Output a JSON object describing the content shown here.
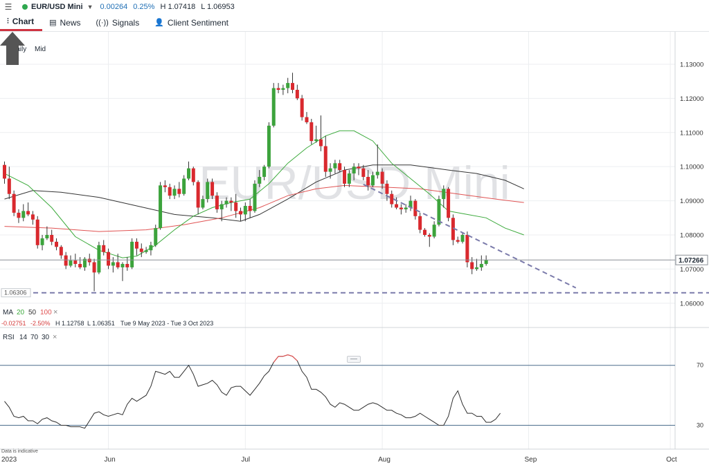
{
  "topbar": {
    "instrument": "EUR/USD Mini",
    "change": "0.00264",
    "change_pct": "0.25%",
    "high": "H 1.07418",
    "low": "L 1.06953",
    "menu_icon": "hamburger-icon",
    "status_color": "#2fa84f"
  },
  "tabs": [
    {
      "label": "Chart",
      "icon": "candles-icon",
      "active": true
    },
    {
      "label": "News",
      "icon": "newspaper-icon",
      "active": false
    },
    {
      "label": "Signals",
      "icon": "signal-icon",
      "active": false
    },
    {
      "label": "Client Sentiment",
      "icon": "person-icon",
      "active": false
    }
  ],
  "chart_data": {
    "type": "candlestick",
    "watermark": "EUR/USD Mini",
    "timeframe": "Daily",
    "price_type": "Mid",
    "y_ticks": [
      "1.13000",
      "1.12000",
      "1.11000",
      "1.10000",
      "1.09000",
      "1.08000",
      "1.07000",
      "1.06000"
    ],
    "ylim": [
      1.0545,
      1.1395
    ],
    "x_ticks": [
      {
        "label": "2023",
        "index": 0
      },
      {
        "label": "Jun",
        "index": 22
      },
      {
        "label": "Jul",
        "index": 51
      },
      {
        "label": "Aug",
        "index": 80
      },
      {
        "label": "Sep",
        "index": 111
      },
      {
        "label": "Oct",
        "index": 141
      }
    ],
    "current_price": "1.07266",
    "current_value": 1.07266,
    "support_label": "1.06306",
    "support_value": 1.06306,
    "trendline": {
      "from": [
        76,
        1.0948
      ],
      "to": [
        121,
        1.0645
      ]
    },
    "ma_legend": {
      "label": "MA",
      "p1": "20",
      "p2": "50",
      "p3": "100",
      "close": "×"
    },
    "ma_colors": {
      "20": "#3caa3c",
      "50": "#e05252",
      "100": "#333333"
    },
    "info_line": {
      "change": "-0.02751",
      "change_pct": "-2.50%",
      "high": "H 1.12758",
      "low": "L 1.06351",
      "range": "Tue 9 May 2023 - Tue 3 Oct 2023"
    },
    "candles": [
      [
        1.1005,
        1.1015,
        1.095,
        1.0965
      ],
      [
        1.0965,
        1.1,
        1.0905,
        1.092
      ],
      [
        1.092,
        1.093,
        1.0855,
        1.0865
      ],
      [
        1.0865,
        1.0875,
        1.0835,
        1.085
      ],
      [
        1.085,
        1.089,
        1.084,
        1.087
      ],
      [
        1.087,
        1.0895,
        1.0855,
        1.086
      ],
      [
        1.086,
        1.087,
        1.083,
        1.0845
      ],
      [
        1.0845,
        1.0855,
        1.076,
        1.077
      ],
      [
        1.077,
        1.08,
        1.0755,
        1.079
      ],
      [
        1.079,
        1.0825,
        1.0785,
        1.08
      ],
      [
        1.08,
        1.0815,
        1.077,
        1.078
      ],
      [
        1.078,
        1.079,
        1.0755,
        1.0765
      ],
      [
        1.0765,
        1.077,
        1.073,
        1.074
      ],
      [
        1.074,
        1.075,
        1.07,
        1.071
      ],
      [
        1.071,
        1.074,
        1.0705,
        1.0725
      ],
      [
        1.0725,
        1.0745,
        1.0705,
        1.0715
      ],
      [
        1.0715,
        1.0735,
        1.07,
        1.0705
      ],
      [
        1.0705,
        1.0735,
        1.0695,
        1.073
      ],
      [
        1.073,
        1.0745,
        1.071,
        1.072
      ],
      [
        1.072,
        1.073,
        1.0635,
        1.069
      ],
      [
        1.069,
        1.078,
        1.0685,
        1.077
      ],
      [
        1.077,
        1.0785,
        1.074,
        1.075
      ],
      [
        1.075,
        1.076,
        1.07,
        1.071
      ],
      [
        1.071,
        1.0735,
        1.069,
        1.072
      ],
      [
        1.072,
        1.0745,
        1.07,
        1.0705
      ],
      [
        1.0705,
        1.072,
        1.0665,
        1.0715
      ],
      [
        1.0715,
        1.0735,
        1.0695,
        1.0705
      ],
      [
        1.0705,
        1.079,
        1.07,
        1.078
      ],
      [
        1.078,
        1.079,
        1.074,
        1.076
      ],
      [
        1.076,
        1.0775,
        1.0735,
        1.075
      ],
      [
        1.075,
        1.0765,
        1.0745,
        1.0755
      ],
      [
        1.0755,
        1.078,
        1.074,
        1.077
      ],
      [
        1.077,
        1.083,
        1.0765,
        1.082
      ],
      [
        1.082,
        1.0955,
        1.0815,
        1.0945
      ],
      [
        1.0945,
        1.096,
        1.0925,
        1.094
      ],
      [
        1.094,
        1.095,
        1.0905,
        1.0915
      ],
      [
        1.0915,
        1.0945,
        1.0905,
        1.0935
      ],
      [
        1.0935,
        1.0955,
        1.091,
        1.092
      ],
      [
        1.092,
        1.0975,
        1.0915,
        1.0965
      ],
      [
        1.0965,
        1.1015,
        1.096,
        1.0995
      ],
      [
        1.0995,
        1.1,
        1.0945,
        1.0955
      ],
      [
        1.0955,
        1.096,
        1.086,
        1.088
      ],
      [
        1.088,
        1.0915,
        1.0875,
        1.0905
      ],
      [
        1.0905,
        1.0965,
        1.0895,
        1.0955
      ],
      [
        1.0955,
        1.0965,
        1.0905,
        1.0915
      ],
      [
        1.0915,
        1.0925,
        1.0865,
        1.0875
      ],
      [
        1.0875,
        1.09,
        1.084,
        1.089
      ],
      [
        1.089,
        1.091,
        1.088,
        1.09
      ],
      [
        1.09,
        1.091,
        1.087,
        1.0895
      ],
      [
        1.0895,
        1.092,
        1.085,
        1.087
      ],
      [
        1.087,
        1.088,
        1.084,
        1.086
      ],
      [
        1.086,
        1.0895,
        1.084,
        1.0885
      ],
      [
        1.0885,
        1.0905,
        1.085,
        1.087
      ],
      [
        1.087,
        1.096,
        1.0865,
        1.095
      ],
      [
        1.095,
        1.099,
        1.094,
        1.097
      ],
      [
        1.097,
        1.1005,
        1.096,
        1.1
      ],
      [
        1.1,
        1.113,
        1.0995,
        1.112
      ],
      [
        1.112,
        1.1245,
        1.1115,
        1.123
      ],
      [
        1.123,
        1.1245,
        1.1215,
        1.1225
      ],
      [
        1.1225,
        1.124,
        1.121,
        1.123
      ],
      [
        1.123,
        1.126,
        1.1215,
        1.1245
      ],
      [
        1.1245,
        1.1275,
        1.1215,
        1.1225
      ],
      [
        1.1225,
        1.124,
        1.1195,
        1.12
      ],
      [
        1.12,
        1.121,
        1.1135,
        1.1145
      ],
      [
        1.1145,
        1.116,
        1.1125,
        1.113
      ],
      [
        1.113,
        1.114,
        1.1065,
        1.1075
      ],
      [
        1.1075,
        1.112,
        1.107,
        1.108
      ],
      [
        1.108,
        1.115,
        1.1045,
        1.106
      ],
      [
        1.106,
        1.109,
        1.097,
        1.0985
      ],
      [
        1.0985,
        1.101,
        1.0965,
        1.0995
      ],
      [
        1.0995,
        1.102,
        1.098,
        1.101
      ],
      [
        1.101,
        1.102,
        1.0985,
        1.099
      ],
      [
        1.099,
        1.1,
        1.094,
        1.095
      ],
      [
        1.095,
        1.099,
        1.094,
        1.098
      ],
      [
        1.098,
        1.101,
        1.096,
        1.1
      ],
      [
        1.1,
        1.101,
        1.0975,
        1.0995
      ],
      [
        1.0995,
        1.1005,
        1.096,
        1.097
      ],
      [
        1.097,
        1.099,
        1.093,
        1.0945
      ],
      [
        1.0945,
        1.0985,
        1.094,
        1.0975
      ],
      [
        1.0975,
        1.1065,
        1.0965,
        1.0985
      ],
      [
        1.0985,
        1.0995,
        1.0935,
        1.095
      ],
      [
        1.095,
        1.096,
        1.09,
        1.092
      ],
      [
        1.092,
        1.093,
        1.088,
        1.089
      ],
      [
        1.089,
        1.091,
        1.0875,
        1.088
      ],
      [
        1.088,
        1.089,
        1.086,
        1.0875
      ],
      [
        1.0875,
        1.089,
        1.0865,
        1.088
      ],
      [
        1.088,
        1.0915,
        1.087,
        1.09
      ],
      [
        1.09,
        1.0905,
        1.0845,
        1.0855
      ],
      [
        1.0855,
        1.0865,
        1.0805,
        1.0815
      ],
      [
        1.0815,
        1.082,
        1.0795,
        1.08
      ],
      [
        1.08,
        1.0805,
        1.0765,
        1.0795
      ],
      [
        1.0795,
        1.084,
        1.079,
        1.083
      ],
      [
        1.083,
        1.0915,
        1.0825,
        1.0905
      ],
      [
        1.0905,
        1.0945,
        1.088,
        1.0935
      ],
      [
        1.0935,
        1.094,
        1.084,
        1.085
      ],
      [
        1.085,
        1.086,
        1.077,
        1.0785
      ],
      [
        1.0785,
        1.0795,
        1.0775,
        1.078
      ],
      [
        1.078,
        1.0805,
        1.0775,
        1.08
      ],
      [
        1.08,
        1.081,
        1.0705,
        1.072
      ],
      [
        1.072,
        1.0735,
        1.0685,
        1.07
      ],
      [
        1.07,
        1.073,
        1.0695,
        1.0705
      ],
      [
        1.0705,
        1.074,
        1.0695,
        1.0715
      ],
      [
        1.0715,
        1.074,
        1.071,
        1.0727
      ]
    ],
    "ma20": [
      [
        0,
        1.098
      ],
      [
        5,
        1.0945
      ],
      [
        10,
        1.088
      ],
      [
        15,
        1.0795
      ],
      [
        20,
        1.0755
      ],
      [
        25,
        1.0733
      ],
      [
        28,
        1.0738
      ],
      [
        32,
        1.077
      ],
      [
        36,
        1.0815
      ],
      [
        40,
        1.0855
      ],
      [
        44,
        1.088
      ],
      [
        48,
        1.0895
      ],
      [
        52,
        1.0905
      ],
      [
        56,
        1.095
      ],
      [
        60,
        1.101
      ],
      [
        64,
        1.1055
      ],
      [
        68,
        1.109
      ],
      [
        71,
        1.1105
      ],
      [
        74,
        1.1105
      ],
      [
        78,
        1.1075
      ],
      [
        82,
        1.101
      ],
      [
        86,
        1.0965
      ],
      [
        90,
        1.092
      ],
      [
        94,
        1.087
      ],
      [
        98,
        1.086
      ],
      [
        102,
        1.085
      ],
      [
        106,
        1.082
      ],
      [
        110,
        1.08
      ]
    ],
    "ma50": [
      [
        0,
        1.0825
      ],
      [
        10,
        1.082
      ],
      [
        20,
        1.081
      ],
      [
        30,
        1.0815
      ],
      [
        38,
        1.083
      ],
      [
        46,
        1.085
      ],
      [
        54,
        1.088
      ],
      [
        60,
        1.0915
      ],
      [
        66,
        1.0935
      ],
      [
        72,
        1.0945
      ],
      [
        80,
        1.094
      ],
      [
        88,
        1.0935
      ],
      [
        96,
        1.092
      ],
      [
        104,
        1.0905
      ],
      [
        110,
        1.0895
      ]
    ],
    "ma100": [
      [
        0,
        1.0905
      ],
      [
        6,
        1.093
      ],
      [
        12,
        1.0925
      ],
      [
        20,
        1.091
      ],
      [
        28,
        1.0885
      ],
      [
        36,
        1.086
      ],
      [
        44,
        1.085
      ],
      [
        50,
        1.084
      ],
      [
        54,
        1.086
      ],
      [
        60,
        1.0905
      ],
      [
        66,
        1.0955
      ],
      [
        72,
        1.099
      ],
      [
        78,
        1.1005
      ],
      [
        86,
        1.1005
      ],
      [
        94,
        1.099
      ],
      [
        100,
        1.098
      ],
      [
        106,
        1.096
      ],
      [
        110,
        1.0935
      ]
    ],
    "rsi": {
      "label": "RSI",
      "period": "14",
      "upper": "70",
      "lower": "30",
      "upper_value": 70,
      "lower_value": 30,
      "ylim": [
        15,
        86
      ],
      "values": [
        46,
        42,
        36,
        35,
        36,
        33,
        33,
        31,
        34,
        35,
        33,
        32,
        30,
        30,
        29,
        29,
        29,
        28,
        33,
        38,
        39,
        37,
        36,
        37,
        38,
        37,
        44,
        48,
        46,
        48,
        50,
        56,
        66,
        65,
        64,
        66,
        62,
        62,
        66,
        70,
        64,
        56,
        57,
        58,
        60,
        57,
        52,
        50,
        55,
        56,
        56,
        53,
        50,
        54,
        58,
        63,
        66,
        72,
        76,
        76,
        77,
        76,
        73,
        66,
        62,
        54,
        54,
        52,
        49,
        44,
        42,
        45,
        44,
        42,
        40,
        40,
        42,
        44,
        45,
        44,
        42,
        40,
        40,
        38,
        37,
        35,
        35,
        36,
        38,
        36,
        34,
        32,
        30,
        30,
        36,
        48,
        53,
        44,
        38,
        38,
        36,
        36,
        32,
        32,
        34,
        38
      ]
    }
  }
}
